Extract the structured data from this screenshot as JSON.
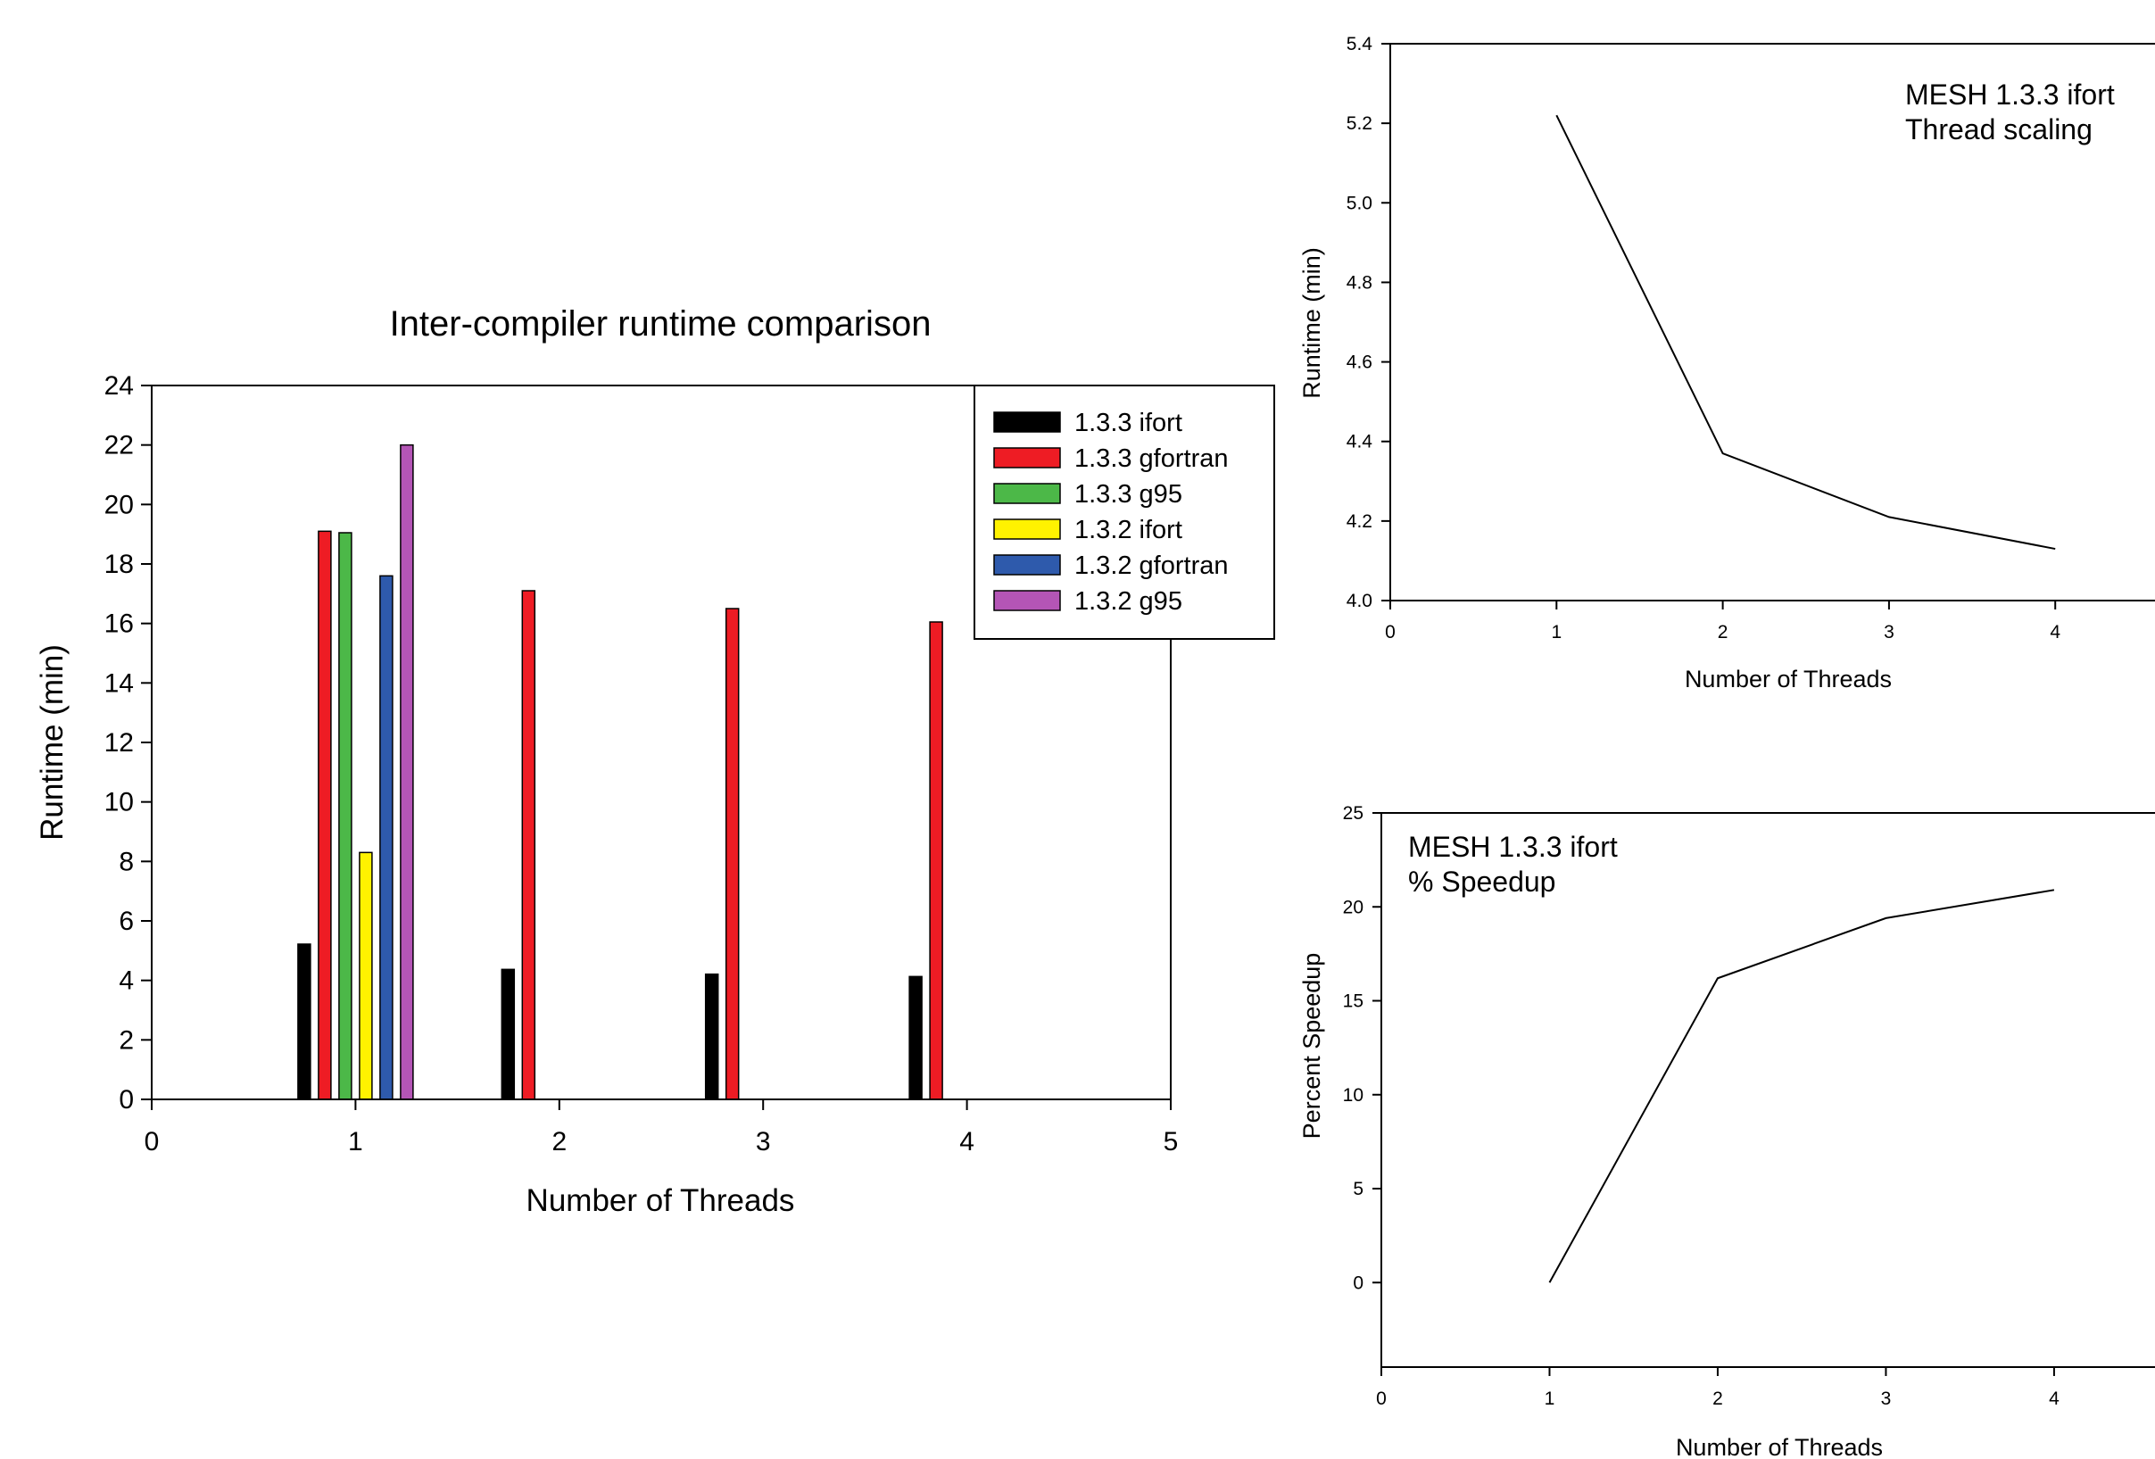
{
  "chart_data": [
    {
      "type": "bar",
      "title": "Inter-compiler runtime comparison",
      "xlabel": "Number of Threads",
      "ylabel": "Runtime (min)",
      "xlim": [
        0,
        5
      ],
      "ylim": [
        0,
        24
      ],
      "xticks": [
        0,
        1,
        2,
        3,
        4,
        5
      ],
      "yticks": [
        0,
        2,
        4,
        6,
        8,
        10,
        12,
        14,
        16,
        18,
        20,
        22,
        24
      ],
      "categories": [
        1,
        2,
        3,
        4
      ],
      "grid": false,
      "legend_position": "top-right",
      "series": [
        {
          "name": "1.3.3 ifort",
          "color": "#000000",
          "values": [
            5.22,
            4.37,
            4.21,
            4.13
          ]
        },
        {
          "name": "1.3.3 gfortran",
          "color": "#ee1c24",
          "values": [
            19.1,
            17.1,
            16.5,
            16.05
          ]
        },
        {
          "name": "1.3.3 g95",
          "color": "#4cb848",
          "values": [
            19.05,
            null,
            null,
            null
          ]
        },
        {
          "name": "1.3.2 ifort",
          "color": "#fff200",
          "values": [
            8.3,
            null,
            null,
            null
          ]
        },
        {
          "name": "1.3.2 gfortran",
          "color": "#2e5aac",
          "values": [
            17.6,
            null,
            null,
            null
          ]
        },
        {
          "name": "1.3.2 g95",
          "color": "#b455b6",
          "values": [
            22.0,
            null,
            null,
            null
          ]
        }
      ]
    },
    {
      "type": "line",
      "annotation": [
        "MESH 1.3.3 ifort",
        "Thread scaling"
      ],
      "xlabel": "Number of Threads",
      "ylabel": "Runtime (min)",
      "xlim": [
        0,
        4.6
      ],
      "ylim": [
        4.0,
        5.4
      ],
      "xticks": [
        0,
        1,
        2,
        3,
        4
      ],
      "yticks": [
        "4.0",
        "4.2",
        "4.4",
        "4.6",
        "4.8",
        "5.0",
        "5.2",
        "5.4"
      ],
      "grid": false,
      "x": [
        1,
        2,
        3,
        4
      ],
      "y": [
        5.22,
        4.37,
        4.21,
        4.13
      ]
    },
    {
      "type": "line",
      "annotation": [
        "MESH 1.3.3 ifort",
        "% Speedup"
      ],
      "xlabel": "Number of Threads",
      "ylabel": "Percent Speedup",
      "xlim": [
        0,
        4.6
      ],
      "ylim": [
        -4.5,
        25
      ],
      "xticks": [
        0,
        1,
        2,
        3,
        4
      ],
      "yticks": [
        0,
        5,
        10,
        15,
        20,
        25
      ],
      "grid": false,
      "x": [
        1,
        2,
        3,
        4
      ],
      "y": [
        0,
        16.2,
        19.4,
        20.9
      ]
    }
  ]
}
